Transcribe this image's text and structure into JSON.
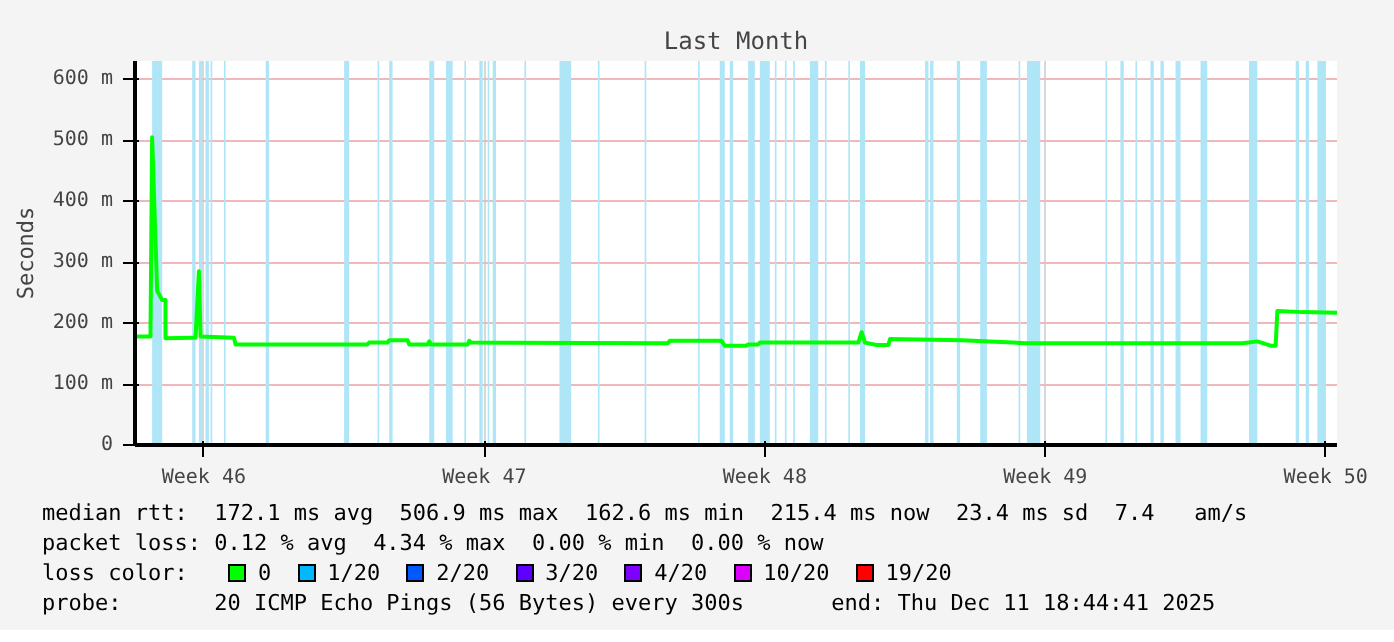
{
  "chart_data": {
    "type": "line",
    "title": "Last Month",
    "ylabel": "Seconds",
    "x": [
      "2025-11-11T19:00",
      "2025-11-12T04:00",
      "2025-11-12T05:00",
      "2025-11-12T08:00",
      "2025-11-12T11:00",
      "2025-11-12T13:00",
      "2025-11-12T13:00",
      "2025-11-13T05:00",
      "2025-11-13T07:00",
      "2025-11-13T09:00",
      "2025-11-13T10:00",
      "2025-11-14T06:00",
      "2025-11-14T07:00",
      "2025-11-17T14:00",
      "2025-11-17T15:00",
      "2025-11-18T02:00",
      "2025-11-18T03:00",
      "2025-11-18T14:00",
      "2025-11-18T15:00",
      "2025-11-19T02:00",
      "2025-11-19T03:00",
      "2025-11-19T04:00",
      "2025-11-20T02:00",
      "2025-11-20T03:00",
      "2025-11-20T04:00",
      "2025-11-25T02:00",
      "2025-11-25T03:00",
      "2025-11-26T10:00",
      "2025-11-26T12:00",
      "2025-11-27T01:00",
      "2025-11-27T02:00",
      "2025-11-27T08:00",
      "2025-11-27T09:00",
      "2025-11-29T20:00",
      "2025-11-29T22:00",
      "2025-11-30T00:00",
      "2025-11-30T07:00",
      "2025-11-30T14:00",
      "2025-11-30T15:00",
      "2025-12-02T10:00",
      "2025-12-04T01:00",
      "2025-12-09T10:00",
      "2025-12-09T19:00",
      "2025-12-10T03:00",
      "2025-12-10T06:00",
      "2025-12-10T07:00",
      "2025-12-10T22:00",
      "2025-12-11T18:44"
    ],
    "series": [
      {
        "name": "0",
        "color": "#00ff00",
        "values": [
          178,
          178,
          505,
          253,
          238,
          238,
          175,
          176,
          176,
          285,
          178,
          176,
          165,
          165,
          168,
          168,
          172,
          172,
          165,
          165,
          170,
          165,
          165,
          171,
          168,
          167,
          171,
          171,
          163,
          163,
          165,
          165,
          168,
          168,
          185,
          168,
          164,
          164,
          174,
          172,
          167,
          167,
          170,
          163,
          163,
          220,
          218,
          217
        ]
      },
      {
        "name": "1/20",
        "color": "#00b8ff",
        "values": [
          null,
          null,
          null,
          null,
          null,
          null,
          null,
          null,
          null,
          null,
          null,
          null,
          null,
          null,
          null,
          null,
          null,
          null,
          null,
          null,
          null,
          null,
          null,
          null,
          null,
          null,
          null,
          null,
          null,
          null,
          null,
          null,
          null,
          null,
          null,
          null,
          null,
          null,
          null,
          null,
          null,
          null,
          null,
          null,
          null,
          null,
          null,
          null
        ]
      },
      {
        "name": "2/20",
        "color": "#0059ff",
        "values": [
          null,
          null,
          null,
          null,
          null,
          null,
          null,
          null,
          null,
          null,
          null,
          null,
          null,
          null,
          null,
          null,
          null,
          null,
          null,
          null,
          null,
          null,
          null,
          null,
          null,
          null,
          null,
          null,
          null,
          null,
          null,
          null,
          null,
          null,
          null,
          null,
          null,
          null,
          null,
          null,
          null,
          null,
          null,
          null,
          null,
          null,
          null,
          null
        ]
      },
      {
        "name": "3/20",
        "color": "#5e00ff",
        "values": [
          null,
          null,
          null,
          null,
          null,
          null,
          null,
          null,
          null,
          null,
          null,
          null,
          null,
          null,
          null,
          null,
          null,
          null,
          null,
          null,
          null,
          null,
          null,
          null,
          null,
          null,
          null,
          null,
          null,
          null,
          null,
          null,
          null,
          null,
          null,
          null,
          null,
          null,
          null,
          null,
          null,
          null,
          null,
          null,
          null,
          null,
          null,
          null
        ]
      },
      {
        "name": "4/20",
        "color": "#7e00ff",
        "values": [
          null,
          null,
          null,
          null,
          null,
          null,
          null,
          null,
          null,
          null,
          null,
          null,
          null,
          null,
          null,
          null,
          null,
          null,
          null,
          null,
          null,
          null,
          null,
          null,
          null,
          null,
          null,
          null,
          null,
          null,
          null,
          null,
          null,
          null,
          null,
          null,
          null,
          null,
          null,
          null,
          null,
          null,
          null,
          null,
          null,
          null,
          null,
          null
        ]
      },
      {
        "name": "10/20",
        "color": "#dd00ff",
        "values": [
          null,
          null,
          null,
          null,
          null,
          null,
          null,
          null,
          null,
          null,
          null,
          null,
          null,
          null,
          null,
          null,
          null,
          null,
          null,
          null,
          null,
          null,
          null,
          null,
          null,
          null,
          null,
          null,
          null,
          null,
          null,
          null,
          null,
          null,
          null,
          null,
          null,
          null,
          null,
          null,
          null,
          null,
          null,
          null,
          null,
          null,
          null,
          null
        ]
      },
      {
        "name": "19/20",
        "color": "#ff0000",
        "values": [
          null,
          null,
          null,
          null,
          null,
          null,
          null,
          null,
          null,
          null,
          null,
          null,
          null,
          null,
          null,
          null,
          null,
          null,
          null,
          null,
          null,
          null,
          null,
          null,
          null,
          null,
          null,
          null,
          null,
          null,
          null,
          null,
          null,
          null,
          null,
          null,
          null,
          null,
          null,
          null,
          null,
          null,
          null,
          null,
          null,
          null,
          null,
          null
        ]
      }
    ],
    "legend_title": "loss color:",
    "legend": "bottom",
    "xlim": [
      "2025-11-11T18:44",
      "2025-12-11T18:44"
    ],
    "xticks": [
      {
        "value": "2025-11-13T12:00",
        "label": "Week 46"
      },
      {
        "value": "2025-11-20T12:00",
        "label": "Week 47"
      },
      {
        "value": "2025-11-27T12:00",
        "label": "Week 48"
      },
      {
        "value": "2025-12-04T12:00",
        "label": "Week 49"
      },
      {
        "value": "2025-12-11T12:00",
        "label": "Week 50"
      }
    ],
    "ylim": [
      0,
      630
    ],
    "yticks": [
      0,
      {
        "value": 100,
        "label": "100 m"
      },
      {
        "value": 200,
        "label": "200 m"
      },
      {
        "value": 300,
        "label": "300 m"
      },
      {
        "value": 400,
        "label": "400 m"
      },
      {
        "value": 500,
        "label": "500 m"
      },
      {
        "value": 600,
        "label": "600 m"
      }
    ],
    "grid": true,
    "bands": [
      {
        "axis": "x",
        "from": "2025-11-12T05:00",
        "to": "2025-11-12T11:00",
        "color": "#aee6f8"
      },
      {
        "axis": "x",
        "from": "2025-11-13T05:00",
        "to": "2025-11-13T07:00",
        "color": "#aee6f8"
      },
      {
        "axis": "x",
        "from": "2025-11-13T09:00",
        "to": "2025-11-13T11:00",
        "color": "#aee6f8"
      },
      {
        "axis": "x",
        "from": "2025-11-13T13:00",
        "to": "2025-11-13T15:00",
        "color": "#aee6f8"
      },
      {
        "axis": "x",
        "from": "2025-11-13T16:00",
        "to": "2025-11-13T17:00",
        "color": "#aee6f8"
      },
      {
        "axis": "x",
        "from": "2025-11-14T00:00",
        "to": "2025-11-14T01:00",
        "color": "#aee6f8"
      },
      {
        "axis": "x",
        "from": "2025-11-15T01:00",
        "to": "2025-11-15T03:00",
        "color": "#aee6f8"
      },
      {
        "axis": "x",
        "from": "2025-11-17T00:00",
        "to": "2025-11-17T03:00",
        "color": "#aee6f8"
      },
      {
        "axis": "x",
        "from": "2025-11-17T20:00",
        "to": "2025-11-17T21:00",
        "color": "#aee6f8"
      },
      {
        "axis": "x",
        "from": "2025-11-18T03:00",
        "to": "2025-11-18T05:00",
        "color": "#aee6f8"
      },
      {
        "axis": "x",
        "from": "2025-11-19T03:00",
        "to": "2025-11-19T06:00",
        "color": "#aee6f8"
      },
      {
        "axis": "x",
        "from": "2025-11-19T13:00",
        "to": "2025-11-19T17:00",
        "color": "#aee6f8"
      },
      {
        "axis": "x",
        "from": "2025-11-20T00:00",
        "to": "2025-11-20T01:00",
        "color": "#aee6f8"
      },
      {
        "axis": "x",
        "from": "2025-11-20T09:00",
        "to": "2025-11-20T11:00",
        "color": "#aee6f8"
      },
      {
        "axis": "x",
        "from": "2025-11-20T14:00",
        "to": "2025-11-20T15:00",
        "color": "#aee6f8"
      },
      {
        "axis": "x",
        "from": "2025-11-20T17:00",
        "to": "2025-11-20T19:00",
        "color": "#aee6f8"
      },
      {
        "axis": "x",
        "from": "2025-11-21T12:00",
        "to": "2025-11-21T13:00",
        "color": "#aee6f8"
      },
      {
        "axis": "x",
        "from": "2025-11-22T09:00",
        "to": "2025-11-22T16:00",
        "color": "#aee6f8"
      },
      {
        "axis": "x",
        "from": "2025-11-23T08:00",
        "to": "2025-11-23T09:00",
        "color": "#aee6f8"
      },
      {
        "axis": "x",
        "from": "2025-11-24T12:00",
        "to": "2025-11-24T13:00",
        "color": "#aee6f8"
      },
      {
        "axis": "x",
        "from": "2025-11-25T20:00",
        "to": "2025-11-25T21:00",
        "color": "#aee6f8"
      },
      {
        "axis": "x",
        "from": "2025-11-26T09:00",
        "to": "2025-11-26T12:00",
        "color": "#aee6f8"
      },
      {
        "axis": "x",
        "from": "2025-11-26T15:00",
        "to": "2025-11-26T17:00",
        "color": "#aee6f8"
      },
      {
        "axis": "x",
        "from": "2025-11-27T02:00",
        "to": "2025-11-27T06:00",
        "color": "#aee6f8"
      },
      {
        "axis": "x",
        "from": "2025-11-27T09:00",
        "to": "2025-11-27T15:00",
        "color": "#aee6f8"
      },
      {
        "axis": "x",
        "from": "2025-11-27T18:00",
        "to": "2025-11-27T19:00",
        "color": "#aee6f8"
      },
      {
        "axis": "x",
        "from": "2025-11-28T00:00",
        "to": "2025-11-28T01:00",
        "color": "#aee6f8"
      },
      {
        "axis": "x",
        "from": "2025-11-28T05:00",
        "to": "2025-11-28T06:00",
        "color": "#aee6f8"
      },
      {
        "axis": "x",
        "from": "2025-11-28T15:00",
        "to": "2025-11-28T20:00",
        "color": "#aee6f8"
      },
      {
        "axis": "x",
        "from": "2025-11-29T00:00",
        "to": "2025-11-29T01:00",
        "color": "#aee6f8"
      },
      {
        "axis": "x",
        "from": "2025-11-29T14:00",
        "to": "2025-11-29T15:00",
        "color": "#aee6f8"
      },
      {
        "axis": "x",
        "from": "2025-11-29T21:00",
        "to": "2025-11-30T00:00",
        "color": "#aee6f8"
      },
      {
        "axis": "x",
        "from": "2025-12-01T12:00",
        "to": "2025-12-01T14:00",
        "color": "#aee6f8"
      },
      {
        "axis": "x",
        "from": "2025-12-01T15:00",
        "to": "2025-12-01T17:00",
        "color": "#aee6f8"
      },
      {
        "axis": "x",
        "from": "2025-12-02T07:00",
        "to": "2025-12-02T09:00",
        "color": "#aee6f8"
      },
      {
        "axis": "x",
        "from": "2025-12-02T21:00",
        "to": "2025-12-03T01:00",
        "color": "#aee6f8"
      },
      {
        "axis": "x",
        "from": "2025-12-03T20:00",
        "to": "2025-12-03T21:00",
        "color": "#aee6f8"
      },
      {
        "axis": "x",
        "from": "2025-12-04T01:00",
        "to": "2025-12-04T09:00",
        "color": "#aee6f8"
      },
      {
        "axis": "x",
        "from": "2025-12-06T00:00",
        "to": "2025-12-06T01:00",
        "color": "#aee6f8"
      },
      {
        "axis": "x",
        "from": "2025-12-06T09:00",
        "to": "2025-12-06T11:00",
        "color": "#aee6f8"
      },
      {
        "axis": "x",
        "from": "2025-12-06T18:00",
        "to": "2025-12-06T19:00",
        "color": "#aee6f8"
      },
      {
        "axis": "x",
        "from": "2025-12-07T03:00",
        "to": "2025-12-07T05:00",
        "color": "#aee6f8"
      },
      {
        "axis": "x",
        "from": "2025-12-07T09:00",
        "to": "2025-12-07T11:00",
        "color": "#aee6f8"
      },
      {
        "axis": "x",
        "from": "2025-12-07T18:00",
        "to": "2025-12-07T21:00",
        "color": "#aee6f8"
      },
      {
        "axis": "x",
        "from": "2025-12-08T09:00",
        "to": "2025-12-08T13:00",
        "color": "#aee6f8"
      },
      {
        "axis": "x",
        "from": "2025-12-09T14:00",
        "to": "2025-12-09T19:00",
        "color": "#aee6f8"
      },
      {
        "axis": "x",
        "from": "2025-12-10T18:00",
        "to": "2025-12-10T20:00",
        "color": "#aee6f8"
      },
      {
        "axis": "x",
        "from": "2025-12-11T00:00",
        "to": "2025-12-11T02:00",
        "color": "#aee6f8"
      },
      {
        "axis": "x",
        "from": "2025-12-11T07:00",
        "to": "2025-12-11T12:00",
        "color": "#aee6f8"
      }
    ],
    "annotations": [
      "median rtt:  172.1 ms avg  506.9 ms max  162.6 ms min  215.4 ms now  23.4 ms sd  7.4   am/s",
      "packet loss: 0.12 % avg  4.34 % max  0.00 % min  0.00 % now",
      "probe:       20 ICMP Echo Pings (56 Bytes) every 300s",
      "end: Thu Dec 11 18:44:41 2025"
    ]
  }
}
